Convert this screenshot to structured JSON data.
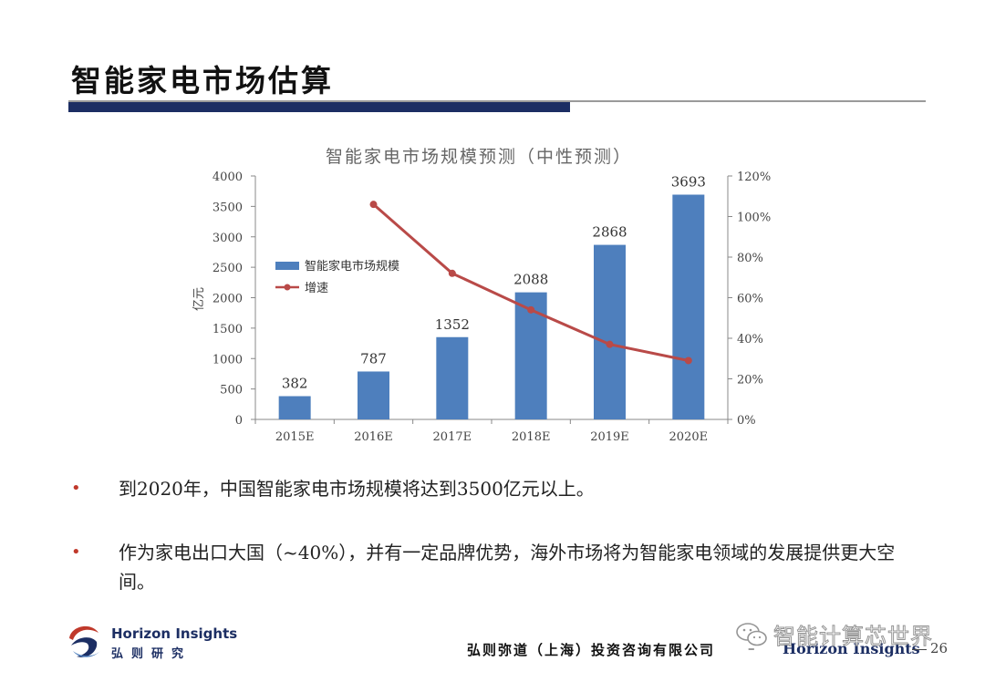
{
  "slide": {
    "title": "智能家电市场估算",
    "bullets": [
      "到2020年，中国智能家电市场规模将达到3500亿元以上。",
      "作为家电出口大国（~40%），并有一定品牌优势，海外市场将为智能家电领域的发展提供更大空间。"
    ]
  },
  "footer": {
    "brand_en": "Horizon Insights",
    "brand_cn": "弘则研究",
    "company": "弘则弥道（上海）投资咨询有限公司",
    "separator": "–",
    "company_en": "Horizon Insights",
    "page_number": "26",
    "watermark": "智能计算芯世界"
  },
  "chart_data": {
    "type": "bar",
    "title": "智能家电市场规模预测（中性预测）",
    "categories": [
      "2015E",
      "2016E",
      "2017E",
      "2018E",
      "2019E",
      "2020E"
    ],
    "ylabel": "亿元",
    "ylim": [
      0,
      4000
    ],
    "yticks": [
      0,
      500,
      1000,
      1500,
      2000,
      2500,
      3000,
      3500,
      4000
    ],
    "y2lim": [
      0,
      1.2
    ],
    "y2ticks": [
      "0%",
      "20%",
      "40%",
      "60%",
      "80%",
      "100%",
      "120%"
    ],
    "series": [
      {
        "name": "智能家电市场规模",
        "type": "bar",
        "axis": "left",
        "color": "#4e7fbd",
        "values": [
          382,
          787,
          1352,
          2088,
          2868,
          3693
        ],
        "labels": [
          "382",
          "787",
          "1352",
          "2088",
          "2868",
          "3693"
        ]
      },
      {
        "name": "增速",
        "type": "line",
        "axis": "right",
        "color": "#b94a48",
        "values": [
          null,
          1.06,
          0.72,
          0.54,
          0.37,
          0.29
        ]
      }
    ],
    "legend": "upper-left inside plot",
    "grid": false
  }
}
